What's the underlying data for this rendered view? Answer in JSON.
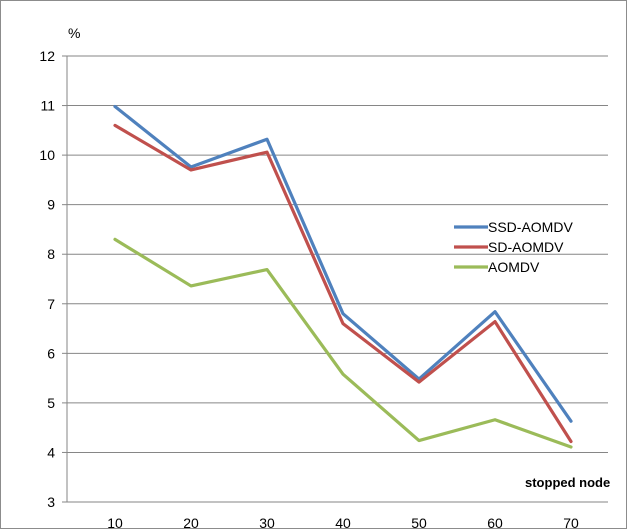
{
  "chart_data": {
    "type": "line",
    "title": "",
    "ylabel": "%",
    "xlabel": "stopped node",
    "x": [
      10,
      20,
      30,
      40,
      50,
      60,
      70
    ],
    "ylim": [
      3,
      12
    ],
    "yticks": [
      3,
      4,
      5,
      6,
      7,
      8,
      9,
      10,
      11,
      12
    ],
    "grid": "horizontal",
    "legend_position": "right",
    "series": [
      {
        "name": "SSD-AOMDV",
        "color": "#4f81bd",
        "values": [
          10.98,
          9.76,
          10.32,
          6.8,
          5.48,
          6.84,
          4.63
        ]
      },
      {
        "name": "SD-AOMDV",
        "color": "#c0504d",
        "values": [
          10.6,
          9.7,
          10.06,
          6.6,
          5.42,
          6.64,
          4.22
        ]
      },
      {
        "name": "AOMDV",
        "color": "#9bbb59",
        "values": [
          8.3,
          7.36,
          7.69,
          5.58,
          4.24,
          4.66,
          4.11
        ]
      }
    ]
  }
}
